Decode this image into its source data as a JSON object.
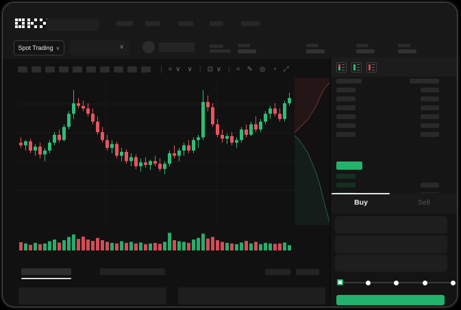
{
  "app": {
    "name": "OKX",
    "logo_text": "OKX"
  },
  "colors": {
    "accent_green": "#23b26b",
    "up_green": "#2dbd78",
    "down_red": "#e8545f",
    "bid_row_green": "#16301f"
  },
  "header": {
    "market_selector_label": "Spot Trading",
    "market_selector_chevron": "∨",
    "pair_dropdown_chevron": "∨",
    "nav_item_count": 5,
    "stat_group_count": 4
  },
  "chart_toolbar": {
    "timeframe_slot_count": 10,
    "icons": [
      {
        "name": "separator",
        "glyph": "|"
      },
      {
        "name": "line-style-icon",
        "glyph": "≈ ∨"
      },
      {
        "name": "style-chevron-icon",
        "glyph": "∨"
      },
      {
        "name": "separator",
        "glyph": "|"
      },
      {
        "name": "chart-type-icon",
        "glyph": "⊡ ∨"
      },
      {
        "name": "separator",
        "glyph": "|"
      },
      {
        "name": "indicators-icon",
        "glyph": "≈"
      },
      {
        "name": "drawing-tools-icon",
        "glyph": "✎"
      },
      {
        "name": "screenshot-icon",
        "glyph": "◎"
      },
      {
        "name": "timer-icon",
        "glyph": "◔"
      },
      {
        "name": "fullscreen-icon",
        "glyph": "⤢"
      }
    ]
  },
  "orderbook": {
    "view_mode_icons": [
      "orderbook-combined-icon",
      "orderbook-bids-icon",
      "orderbook-asks-icon"
    ],
    "ask_row_count": 6,
    "bid_row_count": 4,
    "bid_rows_with_amount_from_index": 1
  },
  "trade_panel": {
    "tabs": [
      {
        "label": "Buy",
        "active": true
      },
      {
        "label": "Sell",
        "active": false
      }
    ],
    "input_row_count": 3,
    "slider": {
      "stop_count": 5,
      "active_stop_index": 0
    }
  },
  "bottom_bar": {
    "left_tab_count": 2,
    "active_tab_index": 0,
    "right_placeholder_count": 2,
    "panel_count": 2
  },
  "chart_data": {
    "type": "candlestick",
    "title": "",
    "xlabel": "",
    "ylabel": "",
    "price_range": [
      0,
      100
    ],
    "grid": true,
    "up_color": "#2dbd78",
    "down_color": "#e8545f",
    "candles": [
      [
        56,
        60,
        52,
        54
      ],
      [
        54,
        58,
        50,
        57
      ],
      [
        57,
        59,
        48,
        50
      ],
      [
        50,
        55,
        46,
        53
      ],
      [
        53,
        56,
        44,
        47
      ],
      [
        47,
        52,
        42,
        50
      ],
      [
        50,
        58,
        48,
        56
      ],
      [
        56,
        64,
        54,
        62
      ],
      [
        62,
        66,
        56,
        58
      ],
      [
        58,
        70,
        57,
        68
      ],
      [
        68,
        80,
        66,
        78
      ],
      [
        78,
        96,
        74,
        86
      ],
      [
        86,
        90,
        82,
        84
      ],
      [
        84,
        88,
        80,
        82
      ],
      [
        82,
        86,
        76,
        78
      ],
      [
        78,
        82,
        70,
        72
      ],
      [
        72,
        76,
        62,
        64
      ],
      [
        64,
        68,
        56,
        58
      ],
      [
        58,
        62,
        50,
        52
      ],
      [
        52,
        58,
        48,
        55
      ],
      [
        55,
        57,
        44,
        46
      ],
      [
        46,
        52,
        42,
        49
      ],
      [
        49,
        51,
        40,
        42
      ],
      [
        42,
        48,
        38,
        45
      ],
      [
        45,
        47,
        36,
        38
      ],
      [
        38,
        44,
        34,
        41
      ],
      [
        41,
        45,
        37,
        39
      ],
      [
        39,
        43,
        35,
        42
      ],
      [
        42,
        46,
        38,
        40
      ],
      [
        40,
        44,
        34,
        36
      ],
      [
        36,
        42,
        32,
        40
      ],
      [
        40,
        50,
        38,
        48
      ],
      [
        48,
        54,
        44,
        46
      ],
      [
        46,
        52,
        42,
        50
      ],
      [
        50,
        56,
        46,
        54
      ],
      [
        54,
        58,
        48,
        50
      ],
      [
        50,
        60,
        48,
        58
      ],
      [
        58,
        62,
        52,
        60
      ],
      [
        60,
        96,
        58,
        87
      ],
      [
        87,
        92,
        80,
        83
      ],
      [
        83,
        86,
        68,
        70
      ],
      [
        70,
        74,
        60,
        62
      ],
      [
        62,
        66,
        56,
        59
      ],
      [
        59,
        63,
        55,
        61
      ],
      [
        61,
        64,
        54,
        56
      ],
      [
        56,
        60,
        52,
        58
      ],
      [
        58,
        68,
        56,
        66
      ],
      [
        66,
        70,
        60,
        62
      ],
      [
        62,
        72,
        61,
        70
      ],
      [
        70,
        76,
        64,
        66
      ],
      [
        66,
        74,
        64,
        72
      ],
      [
        72,
        80,
        70,
        78
      ],
      [
        78,
        84,
        74,
        82
      ],
      [
        82,
        86,
        76,
        78
      ],
      [
        78,
        82,
        72,
        74
      ],
      [
        74,
        88,
        72,
        86
      ],
      [
        86,
        94,
        84,
        90
      ]
    ],
    "volume": [
      38,
      30,
      22,
      34,
      26,
      30,
      44,
      54,
      36,
      50,
      70,
      85,
      58,
      72,
      54,
      46,
      64,
      50,
      40,
      34,
      30,
      44,
      34,
      40,
      30,
      36,
      26,
      30,
      34,
      28,
      40,
      95,
      50,
      44,
      40,
      34,
      54,
      64,
      90,
      60,
      70,
      50,
      40,
      34,
      30,
      26,
      36,
      46,
      30,
      40,
      26,
      34,
      30,
      28,
      30,
      36,
      20
    ]
  }
}
